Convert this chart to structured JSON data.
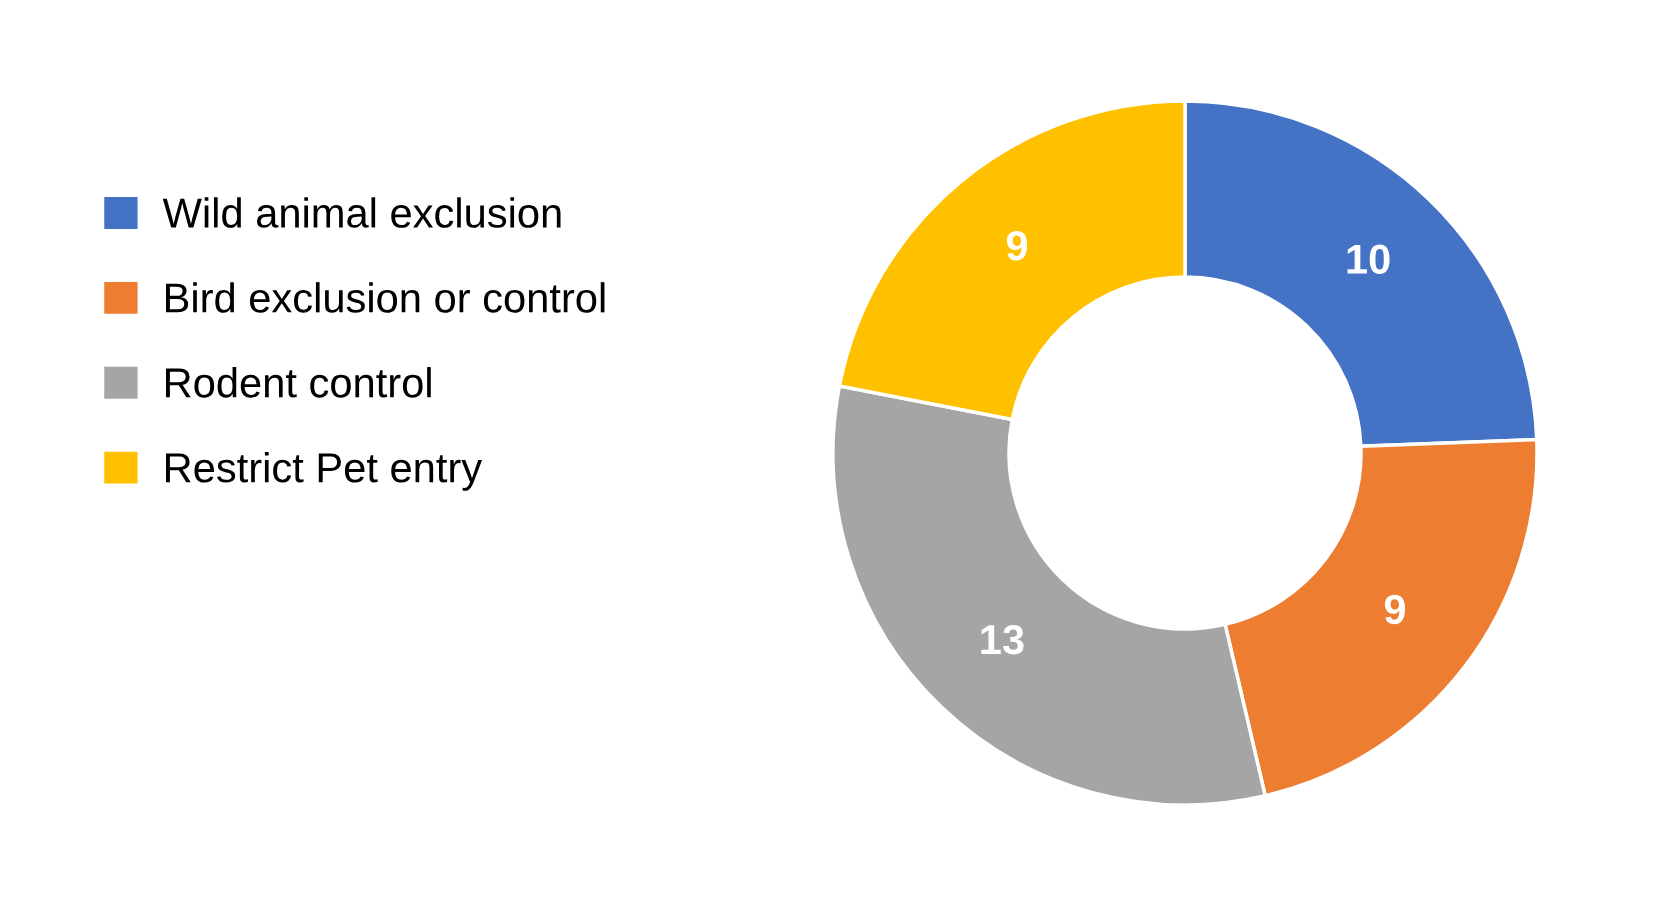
{
  "chart_data": {
    "type": "donut",
    "categories": [
      "Wild animal exclusion",
      "Bird exclusion or control",
      "Rodent control",
      "Restrict Pet entry"
    ],
    "values": [
      10,
      9,
      13,
      9
    ],
    "colors": [
      "#4472c4",
      "#ed7d31",
      "#a5a5a5",
      "#ffc000"
    ],
    "data_labels": true,
    "legend": "left"
  }
}
